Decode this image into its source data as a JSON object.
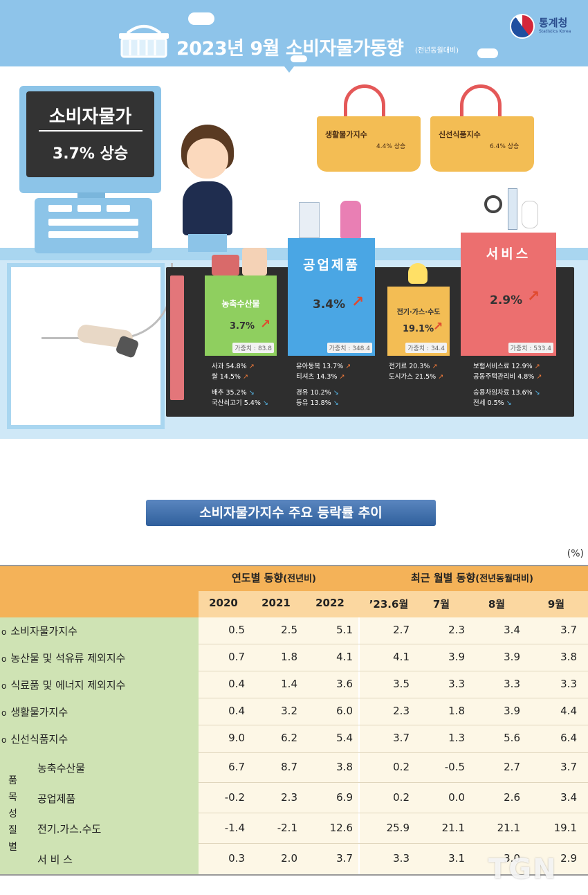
{
  "header": {
    "title": "2023년  9월 소비자물가동향",
    "title_sub": "(전년동월대비)",
    "logo_text": "통계청",
    "logo_sub": "Statistics Korea"
  },
  "monitor": {
    "title": "소비자물가",
    "value": "3.7% 상승"
  },
  "baskets": [
    {
      "label": "생활물가지수",
      "value": "4.4% 상승"
    },
    {
      "label": "신선식품지수",
      "value": "6.4% 상승"
    }
  ],
  "categories": [
    {
      "label": "농축수산물",
      "value": "3.7%",
      "weight": "가중치 : 83.8",
      "up": [
        "사과 54.8%",
        "쌀 14.5%"
      ],
      "down": [
        "배추 35.2%",
        "국산쇠고기 5.4%"
      ]
    },
    {
      "label": "공업제품",
      "value": "3.4%",
      "weight": "가중치 : 348.4",
      "up": [
        "유아동복 13.7%",
        "티셔츠 14.3%"
      ],
      "down": [
        "경유 10.2%",
        "등유 13.8%"
      ]
    },
    {
      "label": "전기·가스·수도",
      "value": "19.1%",
      "weight": "가중치 : 34.4",
      "up": [
        "전기료 20.3%",
        "도시가스 21.5%"
      ],
      "down": []
    },
    {
      "label": "서비스",
      "value": "2.9%",
      "weight": "가중치 : 533.4",
      "up": [
        "보험서비스료 12.9%",
        "공동주택관리비 4.8%"
      ],
      "down": [
        "승용차임차료 13.6%",
        "전세 0.5%"
      ]
    }
  ],
  "section_title": "소비자물가지수 주요 등락률 추이",
  "unit": "(%)",
  "table": {
    "group_annual": "연도별 동향",
    "group_annual_sub": "(전년비)",
    "group_monthly": "최근 월별 동향",
    "group_monthly_sub": "(전년동월대비)",
    "columns": [
      "2020",
      "2021",
      "2022",
      "’23.6월",
      "7월",
      "8월",
      "9월"
    ],
    "rows": [
      {
        "label": "소비자물가지수",
        "bullet": "o",
        "values": [
          "0.5",
          "2.5",
          "5.1",
          "2.7",
          "2.3",
          "3.4",
          "3.7"
        ]
      },
      {
        "label": "농산물 및 석유류 제외지수",
        "bullet": "o",
        "values": [
          "0.7",
          "1.8",
          "4.1",
          "4.1",
          "3.9",
          "3.9",
          "3.8"
        ]
      },
      {
        "label": "식료품 및 에너지 제외지수",
        "bullet": "o",
        "values": [
          "0.4",
          "1.4",
          "3.6",
          "3.5",
          "3.3",
          "3.3",
          "3.3"
        ]
      },
      {
        "label": "생활물가지수",
        "bullet": "o",
        "values": [
          "0.4",
          "3.2",
          "6.0",
          "2.3",
          "1.8",
          "3.9",
          "4.4"
        ]
      },
      {
        "label": "신선식품지수",
        "bullet": "o",
        "values": [
          "9.0",
          "6.2",
          "5.4",
          "3.7",
          "1.3",
          "5.6",
          "6.4"
        ]
      }
    ],
    "group_label_chars": [
      "품",
      "목",
      "성",
      "질",
      "별"
    ],
    "group_rows": [
      {
        "label": "농축수산물",
        "values": [
          "6.7",
          "8.7",
          "3.8",
          "0.2",
          "-0.5",
          "2.7",
          "3.7"
        ]
      },
      {
        "label": "공업제품",
        "values": [
          "-0.2",
          "2.3",
          "6.9",
          "0.2",
          "0.0",
          "2.6",
          "3.4"
        ]
      },
      {
        "label": "전기.가스.수도",
        "values": [
          "-1.4",
          "-2.1",
          "12.6",
          "25.9",
          "21.1",
          "21.1",
          "19.1"
        ]
      },
      {
        "label": "서 비 스",
        "values": [
          "0.3",
          "2.0",
          "3.7",
          "3.3",
          "3.1",
          "3.0",
          "2.9"
        ]
      }
    ]
  },
  "watermark": "TGN"
}
